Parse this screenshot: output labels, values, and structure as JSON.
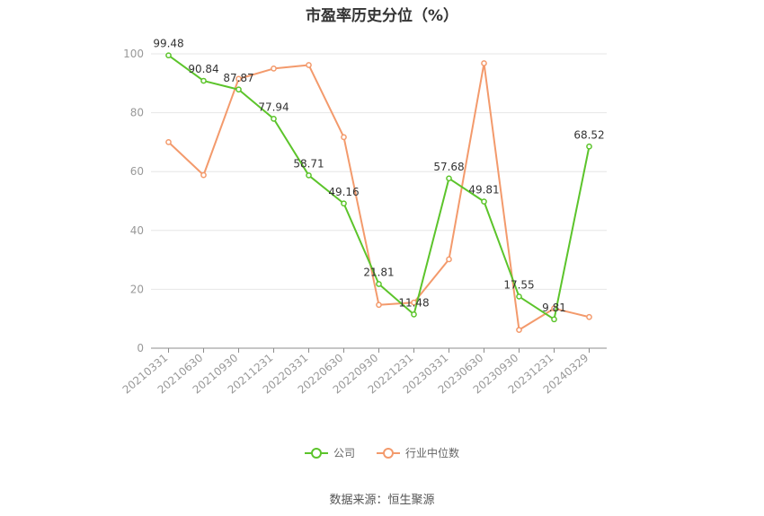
{
  "chart_data": {
    "type": "line",
    "title": "市盈率历史分位（%）",
    "categories": [
      "20210331",
      "20210630",
      "20210930",
      "20211231",
      "20220331",
      "20220630",
      "20220930",
      "20221231",
      "20230331",
      "20230630",
      "20230930",
      "20231231",
      "20240329"
    ],
    "ylim": [
      0,
      100
    ],
    "yticks": [
      0,
      20,
      40,
      60,
      80,
      100
    ],
    "grid": true,
    "legend_position": "bottom",
    "series": [
      {
        "name": "公司",
        "color": "#5cc42b",
        "values": [
          99.48,
          90.84,
          87.87,
          77.94,
          58.71,
          49.16,
          21.81,
          11.48,
          57.68,
          49.81,
          17.55,
          9.81,
          68.52
        ],
        "labels": [
          "99.48",
          "90.84",
          "87.87",
          "77.94",
          "58.71",
          "49.16",
          "21.81",
          "11.48",
          "57.68",
          "49.81",
          "17.55",
          "9.81",
          "68.52"
        ]
      },
      {
        "name": "行业中位数",
        "color": "#f39a6c",
        "values": [
          70.0,
          58.8,
          91.5,
          95.0,
          96.2,
          71.7,
          14.7,
          15.5,
          30.2,
          96.8,
          6.2,
          13.5,
          10.6
        ]
      }
    ]
  },
  "source": "数据来源：恒生聚源"
}
